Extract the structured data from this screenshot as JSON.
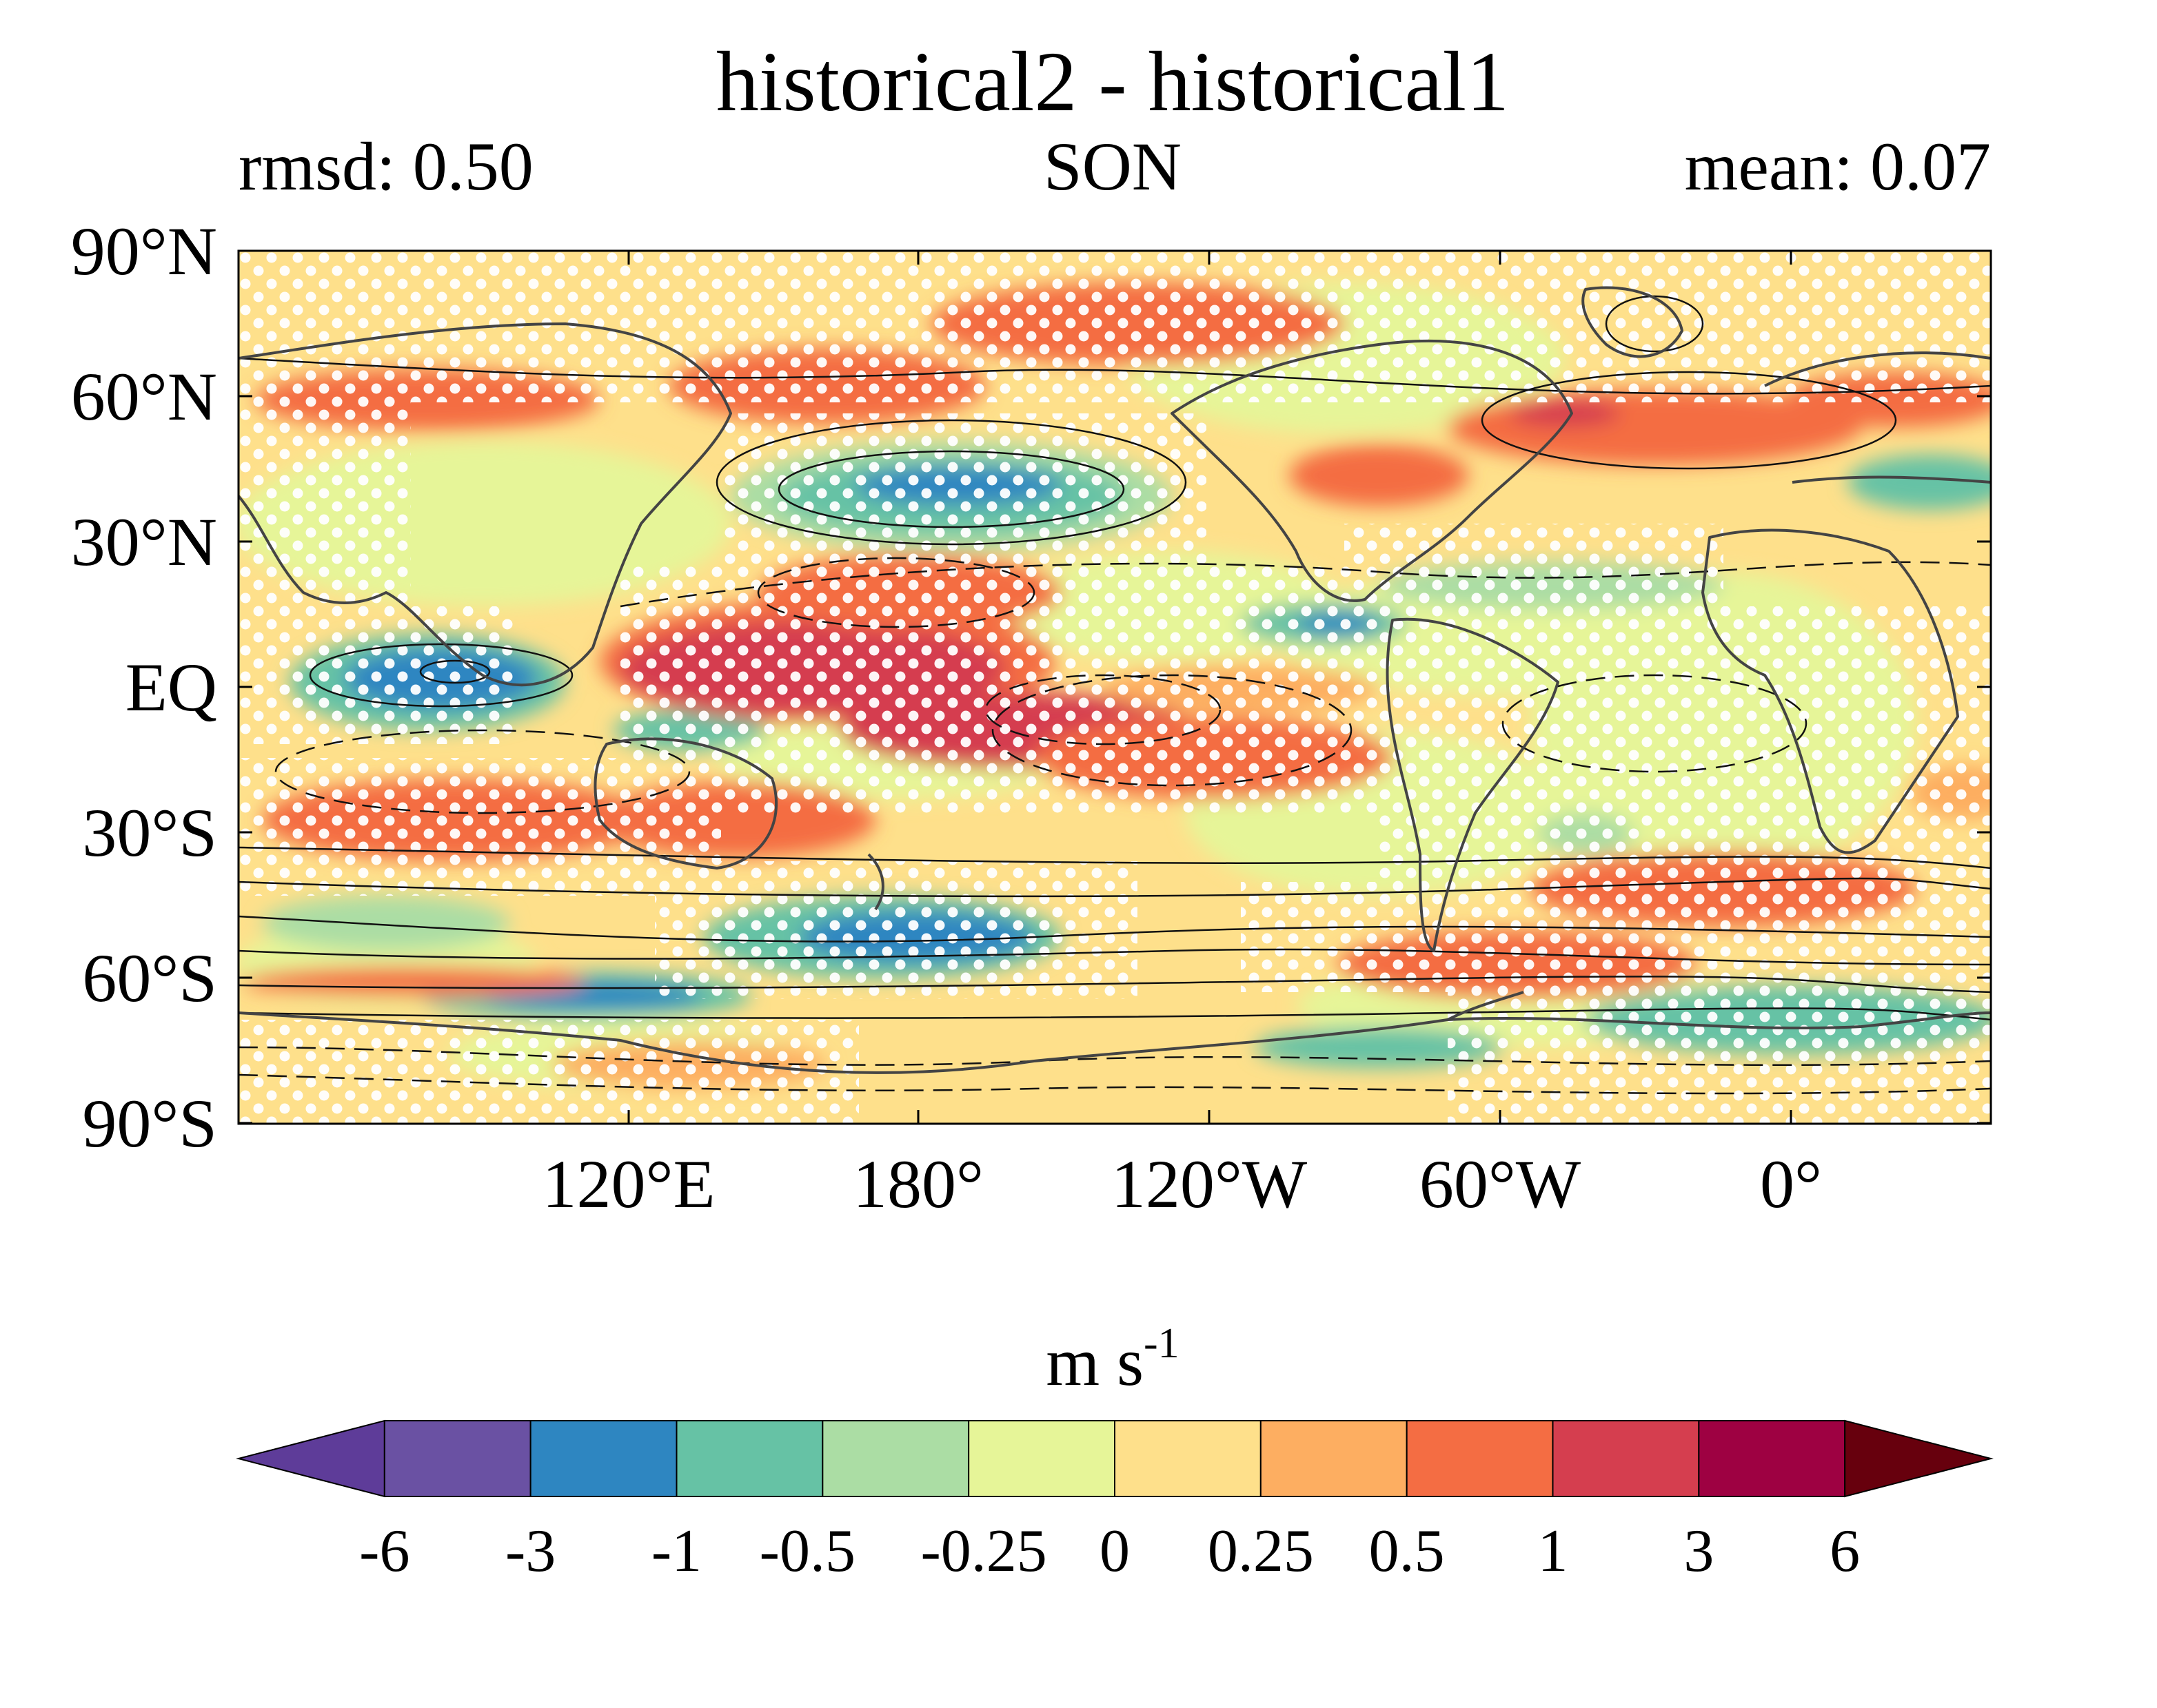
{
  "title": "historical2 - historical1",
  "left_stat": "rmsd: 0.50",
  "center_label": "SON",
  "right_stat": "mean: 0.07",
  "lat_labels": [
    "90°N",
    "60°N",
    "30°N",
    "EQ",
    "30°S",
    "60°S",
    "90°S"
  ],
  "lon_labels": [
    "120°E",
    "180°",
    "120°W",
    "60°W",
    "0°"
  ],
  "colorbar": {
    "unit_base": "m s",
    "unit_exp": "-1",
    "tick_labels": [
      "-6",
      "-3",
      "-1",
      "-0.5",
      "-0.25",
      "0",
      "0.25",
      "0.5",
      "1",
      "3",
      "6"
    ],
    "colors": [
      "#5e3c99",
      "#6a51a3",
      "#2e86c1",
      "#66c2a5",
      "#abdda4",
      "#e6f598",
      "#fee08b",
      "#fdae61",
      "#f46d43",
      "#d53e4f",
      "#9e0142",
      "#67000d"
    ]
  },
  "icons": {
    "stipple": "white-dot-stipple-icon",
    "coastline": "coastline-icon"
  },
  "colors": {
    "frame": "#000000",
    "coastline": "#444444",
    "contour": "#111111",
    "stipple": "#ffffff"
  }
}
